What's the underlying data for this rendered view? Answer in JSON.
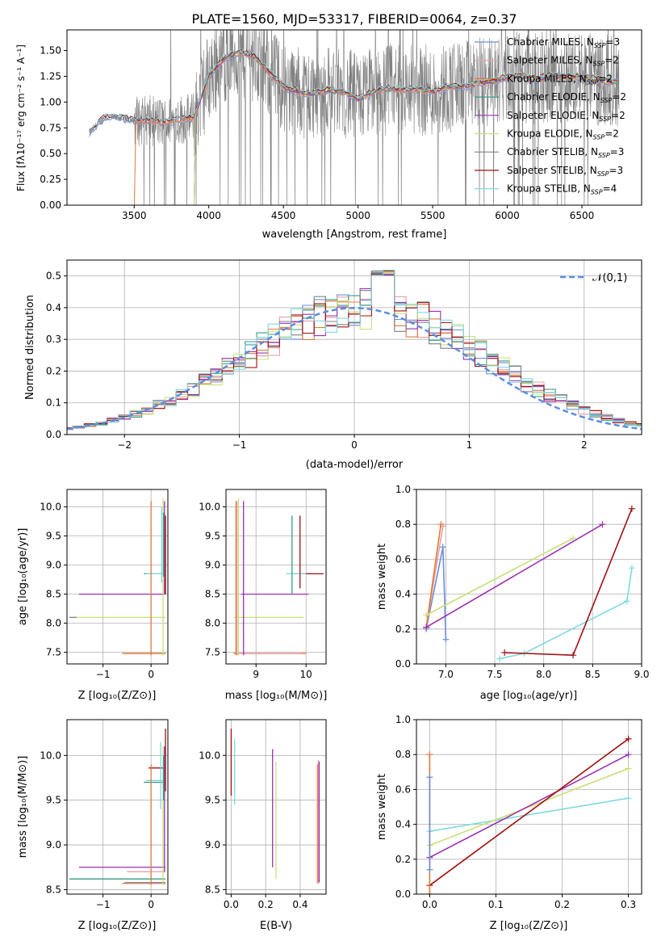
{
  "colors": {
    "chabrier_miles": "#6c8fd6",
    "salpeter_miles": "#e8a0a8",
    "kroupa_miles": "#e07b39",
    "chabrier_elodie": "#3a9a8a",
    "salpeter_elodie": "#9b30b0",
    "kroupa_elodie": "#c8e07a",
    "chabrier_stelib": "#808080",
    "salpeter_stelib": "#a01010",
    "kroupa_stelib": "#80d8e0",
    "gaussian": "#5b8fdd",
    "data": "#808080"
  },
  "chart_data": [
    {
      "id": "spectrum",
      "type": "line",
      "title": "PLATE=1560, MJD=53317, FIBERID=0064, z=0.37",
      "xlabel": "wavelength [Angstrom, rest frame]",
      "ylabel": "Flux [fλ10⁻¹⁷ erg cm⁻² s⁻¹ A⁻¹]",
      "xlim": [
        3050,
        6900
      ],
      "ylim": [
        0,
        1.7
      ],
      "xticks": [
        3500,
        4000,
        4500,
        5000,
        5500,
        6000,
        6500
      ],
      "yticks": [
        0.0,
        0.25,
        0.5,
        0.75,
        1.0,
        1.25,
        1.5
      ],
      "legend_position": "top-right",
      "legend": [
        {
          "label": "Chabrier MILES, N",
          "sub": "SSP",
          "eq": "=3"
        },
        {
          "label": "Salpeter MILES, N",
          "sub": "SSP",
          "eq": "=2"
        },
        {
          "label": "Kroupa MILES, N",
          "sub": "SSP",
          "eq": "=2"
        },
        {
          "label": "Chabrier ELODIE, N",
          "sub": "SSP",
          "eq": "=2"
        },
        {
          "label": "Salpeter ELODIE, N",
          "sub": "SSP",
          "eq": "=2"
        },
        {
          "label": "Kroupa ELODIE, N",
          "sub": "SSP",
          "eq": "=2"
        },
        {
          "label": "Chabrier STELIB, N",
          "sub": "SSP",
          "eq": "=3"
        },
        {
          "label": "Salpeter STELIB, N",
          "sub": "SSP",
          "eq": "=3"
        },
        {
          "label": "Kroupa STELIB, N",
          "sub": "SSP",
          "eq": "=4"
        }
      ],
      "model_wave": [
        3200,
        3300,
        3400,
        3500,
        3600,
        3700,
        3800,
        3900,
        4000,
        4100,
        4200,
        4300,
        4400,
        4500,
        4600,
        4700,
        4800,
        4900,
        5000,
        5100,
        5200,
        5300,
        5400,
        5500,
        5600,
        5700,
        5800,
        5900,
        6000,
        6100,
        6200,
        6300,
        6400,
        6500,
        6600,
        6700
      ],
      "model_flux": [
        0.7,
        0.85,
        0.85,
        0.82,
        0.82,
        0.8,
        0.83,
        0.85,
        1.25,
        1.42,
        1.48,
        1.45,
        1.3,
        1.15,
        1.1,
        1.08,
        1.12,
        1.1,
        1.03,
        1.1,
        1.13,
        1.12,
        1.13,
        1.1,
        1.15,
        1.15,
        1.18,
        1.2,
        1.24,
        1.25,
        1.22,
        1.26,
        1.24,
        1.24,
        1.22,
        1.2
      ]
    },
    {
      "id": "residuals",
      "type": "line",
      "xlabel": "(data-model)/error",
      "ylabel": "Normed distribution",
      "xlim": [
        -2.5,
        2.5
      ],
      "ylim": [
        0,
        0.55
      ],
      "xticks": [
        -2,
        -1,
        0,
        1,
        2
      ],
      "yticks": [
        0.0,
        0.1,
        0.2,
        0.3,
        0.4,
        0.5
      ],
      "grid": true,
      "legend_position": "top-right",
      "gaussian_label": "𝒩(0,1)"
    },
    {
      "id": "age-vs-z",
      "type": "scatter",
      "xlabel": "Z [log₁₀(Z/Z⊙)]",
      "ylabel": "age  [log₁₀(age/yr)]",
      "xlim": [
        -1.75,
        0.35
      ],
      "ylim": [
        7.3,
        10.3
      ],
      "xticks": [
        -1,
        0
      ],
      "yticks": [
        7.5,
        8.0,
        8.5,
        9.0,
        9.5,
        10.0
      ],
      "grid": true
    },
    {
      "id": "age-vs-mass",
      "type": "scatter",
      "xlabel": "mass [log₁₀(M/M⊙)]",
      "xlim": [
        8.4,
        10.4
      ],
      "ylim": [
        7.3,
        10.3
      ],
      "xticks": [
        9,
        10
      ],
      "yticks": [
        7.5,
        8.0,
        8.5,
        9.0,
        9.5,
        10.0
      ],
      "grid": true
    },
    {
      "id": "weight-vs-age",
      "type": "line",
      "xlabel": "age  [log₁₀(age/yr)]",
      "ylabel": "mass weight",
      "xlim": [
        6.7,
        9.0
      ],
      "ylim": [
        0,
        1.0
      ],
      "xticks": [
        7.0,
        7.5,
        8.0,
        8.5,
        9.0
      ],
      "yticks": [
        0.0,
        0.2,
        0.4,
        0.6,
        0.8,
        1.0
      ],
      "grid": true,
      "series": [
        {
          "color": "#6c8fd6",
          "x": [
            6.8,
            6.97,
            7.0
          ],
          "y": [
            0.2,
            0.67,
            0.14
          ]
        },
        {
          "color": "#e8a0a8",
          "x": [
            6.8,
            6.97
          ],
          "y": [
            0.21,
            0.79
          ]
        },
        {
          "color": "#e07b39",
          "x": [
            6.8,
            6.95
          ],
          "y": [
            0.21,
            0.8
          ]
        },
        {
          "color": "#c8e07a",
          "x": [
            6.8,
            8.3
          ],
          "y": [
            0.28,
            0.72
          ]
        },
        {
          "color": "#9b30b0",
          "x": [
            6.8,
            8.6
          ],
          "y": [
            0.21,
            0.8
          ]
        },
        {
          "color": "#80d8e0",
          "x": [
            7.55,
            7.8,
            8.85,
            8.9
          ],
          "y": [
            0.03,
            0.06,
            0.36,
            0.55
          ]
        },
        {
          "color": "#a01010",
          "x": [
            7.6,
            8.3,
            8.9
          ],
          "y": [
            0.065,
            0.05,
            0.89
          ]
        }
      ]
    },
    {
      "id": "mass-vs-z",
      "type": "scatter",
      "xlabel": "Z [log₁₀(Z/Z⊙)]",
      "ylabel": "mass [log₁₀(M/M⊙)]",
      "xlim": [
        -1.75,
        0.35
      ],
      "ylim": [
        8.45,
        10.4
      ],
      "xticks": [
        -1,
        0
      ],
      "yticks": [
        8.5,
        9.0,
        9.5,
        10.0
      ],
      "grid": true
    },
    {
      "id": "mass-vs-ebv",
      "type": "scatter",
      "xlabel": "E(B-V)",
      "xlim": [
        -0.03,
        0.55
      ],
      "ylim": [
        8.45,
        10.4
      ],
      "xticks": [
        0.0,
        0.2,
        0.4
      ],
      "yticks": [
        8.5,
        9.0,
        9.5,
        10.0
      ],
      "grid": true
    },
    {
      "id": "weight-vs-z",
      "type": "line",
      "xlabel": "Z [log₁₀(Z/Z⊙)]",
      "ylabel": "mass weight",
      "xlim": [
        -0.02,
        0.32
      ],
      "ylim": [
        0,
        1.0
      ],
      "xticks": [
        0.0,
        0.1,
        0.2,
        0.3
      ],
      "yticks": [
        0.0,
        0.2,
        0.4,
        0.6,
        0.8,
        1.0
      ],
      "grid": true,
      "series": [
        {
          "color": "#80d8e0",
          "x": [
            0.0,
            0.3
          ],
          "y": [
            0.36,
            0.55
          ]
        },
        {
          "color": "#c8e07a",
          "x": [
            0.0,
            0.3
          ],
          "y": [
            0.28,
            0.72
          ]
        },
        {
          "color": "#9b30b0",
          "x": [
            0.0,
            0.3
          ],
          "y": [
            0.21,
            0.8
          ]
        },
        {
          "color": "#a01010",
          "x": [
            0.0,
            0.3
          ],
          "y": [
            0.05,
            0.89
          ]
        },
        {
          "color": "#e07b39",
          "x": [
            0.0,
            0.0
          ],
          "y": [
            0.0,
            0.8
          ]
        },
        {
          "color": "#6c8fd6",
          "x": [
            0.0,
            0.0
          ],
          "y": [
            0.14,
            0.67
          ]
        }
      ]
    }
  ]
}
